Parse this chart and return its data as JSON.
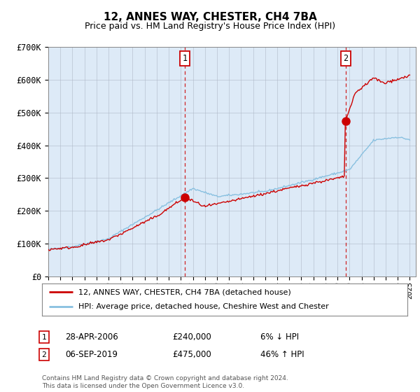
{
  "title": "12, ANNES WAY, CHESTER, CH4 7BA",
  "subtitle": "Price paid vs. HM Land Registry's House Price Index (HPI)",
  "ylim": [
    0,
    700000
  ],
  "yticks": [
    0,
    100000,
    200000,
    300000,
    400000,
    500000,
    600000,
    700000
  ],
  "ytick_labels": [
    "£0",
    "£100K",
    "£200K",
    "£300K",
    "£400K",
    "£500K",
    "£600K",
    "£700K"
  ],
  "xlim_start": 1995.0,
  "xlim_end": 2025.5,
  "bg_color": "#ddeaf7",
  "fig_bg_color": "#ffffff",
  "grid_color": "#b0b8c8",
  "red_color": "#cc0000",
  "blue_color": "#88c0e0",
  "sale1_x": 2006.33,
  "sale1_y": 240000,
  "sale2_x": 2019.67,
  "sale2_y": 475000,
  "legend_line1": "12, ANNES WAY, CHESTER, CH4 7BA (detached house)",
  "legend_line2": "HPI: Average price, detached house, Cheshire West and Chester",
  "annotation1_date": "28-APR-2006",
  "annotation1_price": "£240,000",
  "annotation1_hpi": "6% ↓ HPI",
  "annotation2_date": "06-SEP-2019",
  "annotation2_price": "£475,000",
  "annotation2_hpi": "46% ↑ HPI",
  "footer": "Contains HM Land Registry data © Crown copyright and database right 2024.\nThis data is licensed under the Open Government Licence v3.0."
}
